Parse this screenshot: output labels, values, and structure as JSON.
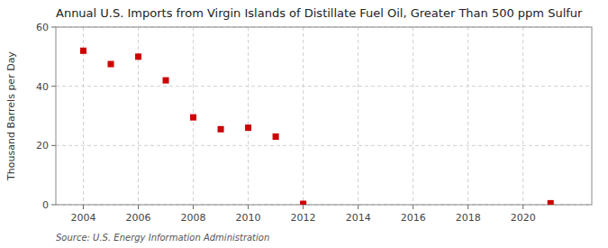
{
  "chart_data": {
    "type": "scatter",
    "title": "Annual U.S. Imports from Virgin Islands of Distillate Fuel Oil, Greater Than 500 ppm Sulfur",
    "y_label": "Thousand Barrels per Day",
    "source": "Source: U.S. Energy Information Administration",
    "x": [
      2004,
      2005,
      2006,
      2007,
      2008,
      2009,
      2010,
      2011,
      2012,
      2021
    ],
    "values": [
      52.0,
      47.5,
      50.0,
      42.0,
      29.5,
      25.5,
      26.0,
      23.0,
      0.3,
      0.5
    ],
    "color": "#cc0000",
    "marker": "square",
    "xlim": [
      2003.0,
      2022.5
    ],
    "ylim": [
      0,
      60
    ],
    "xticks": [
      2004,
      2006,
      2008,
      2010,
      2012,
      2014,
      2016,
      2018,
      2020
    ],
    "yticks": [
      0,
      20,
      40,
      60
    ],
    "grid": true
  }
}
